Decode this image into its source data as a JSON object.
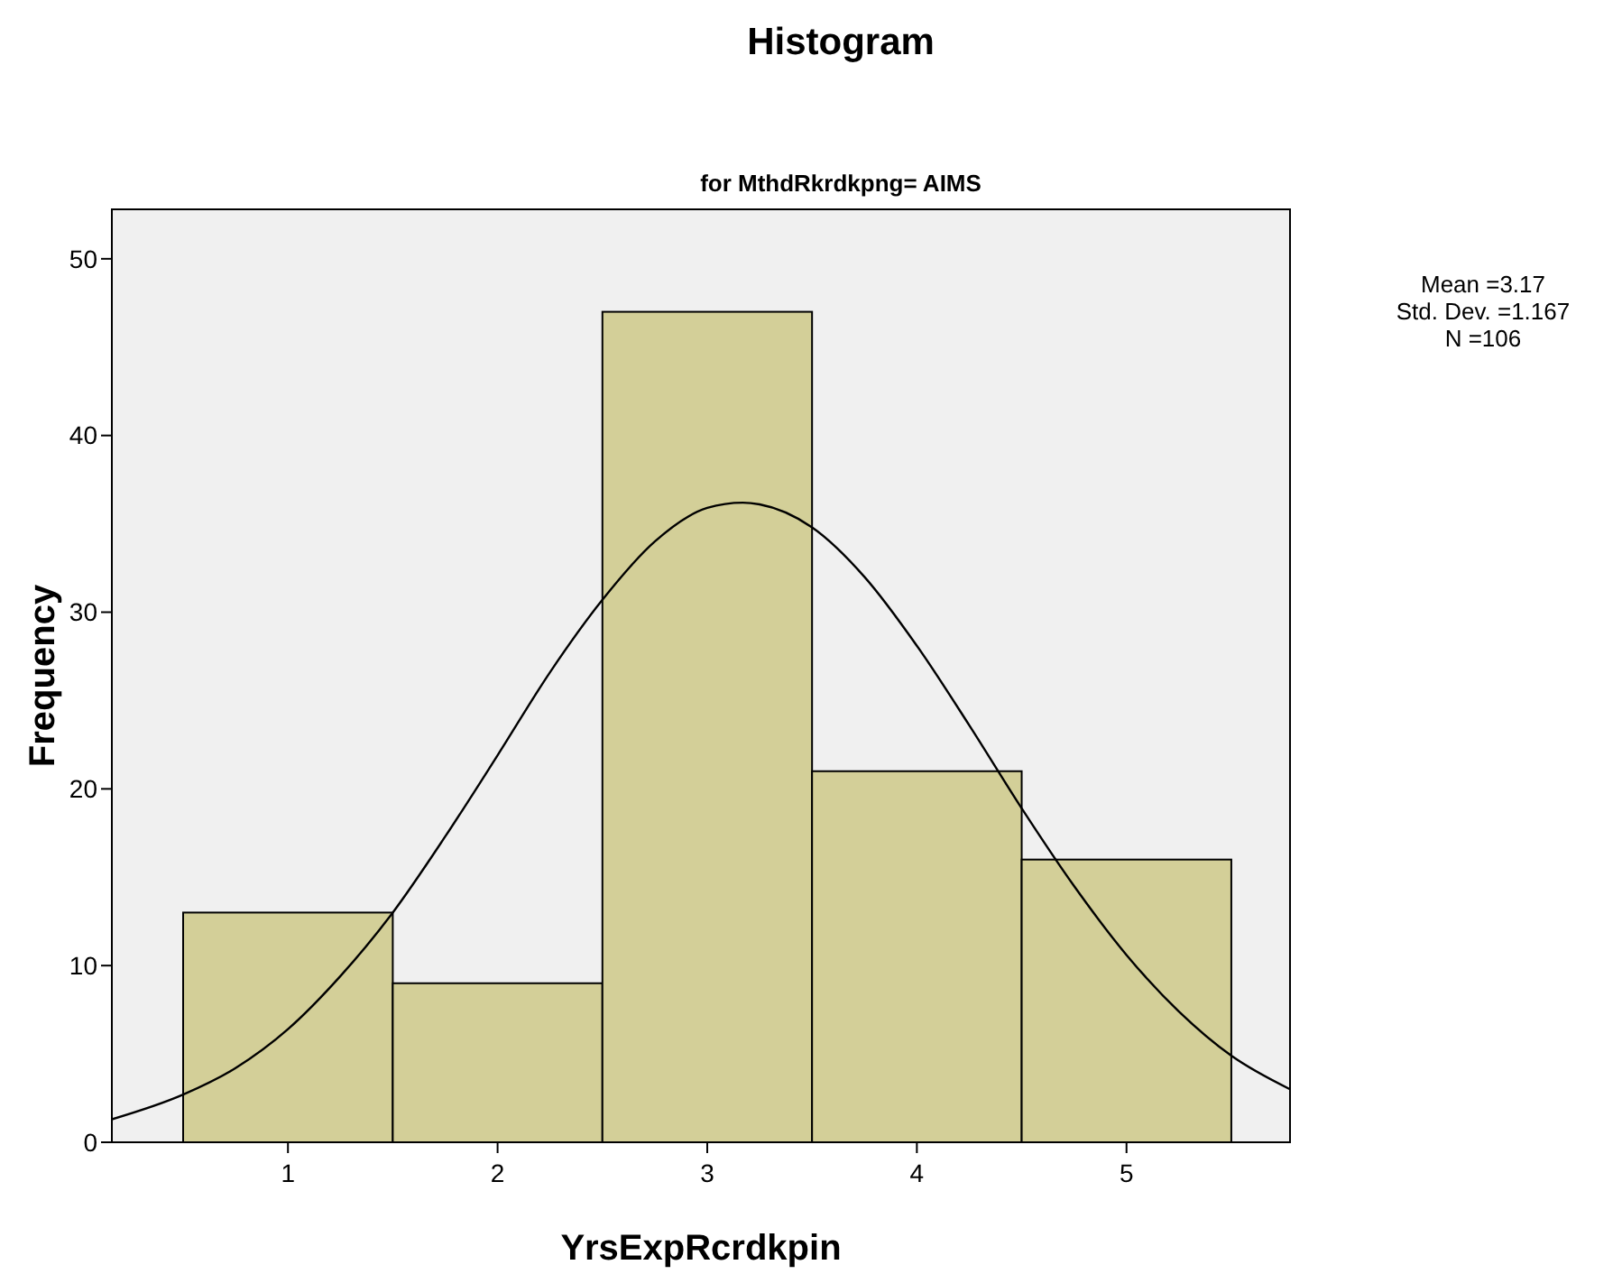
{
  "chart_data": {
    "type": "histogram",
    "title": "Histogram",
    "subtitle": "for MthdRkrdkpng= AIMS",
    "xlabel": "YrsExpRcrdkpin",
    "ylabel": "Frequency",
    "annotations": [
      "Mean =3.17",
      "Std. Dev. =1.167",
      "N =106"
    ],
    "xlim": [
      0.16,
      5.78
    ],
    "xticks": [
      1,
      2,
      3,
      4,
      5
    ],
    "ylim": [
      0,
      52.8
    ],
    "yticks": [
      0,
      10,
      20,
      30,
      40,
      50
    ],
    "grid": false,
    "series": [
      {
        "bins": [
          0.5,
          1.5,
          2.5,
          3.5,
          4.5,
          5.5
        ],
        "values": [
          13,
          9,
          47,
          21,
          16
        ],
        "color": "#d3cf98"
      },
      {
        "type": "line",
        "color": "#000000",
        "x": [
          0.16,
          0.5,
          0.75,
          1,
          1.25,
          1.5,
          1.75,
          2,
          2.25,
          2.5,
          2.75,
          3,
          3.17,
          3.25,
          3.5,
          3.75,
          4,
          4.25,
          4.5,
          4.75,
          5,
          5.25,
          5.5,
          5.78
        ],
        "values": [
          1.3,
          2.7,
          4.2,
          6.4,
          9.4,
          13,
          17.3,
          21.9,
          26.6,
          30.7,
          34,
          35.9,
          36.2,
          36.1,
          34.8,
          32,
          28.1,
          23.6,
          18.9,
          14.5,
          10.6,
          7.4,
          4.9,
          3
        ]
      }
    ]
  }
}
